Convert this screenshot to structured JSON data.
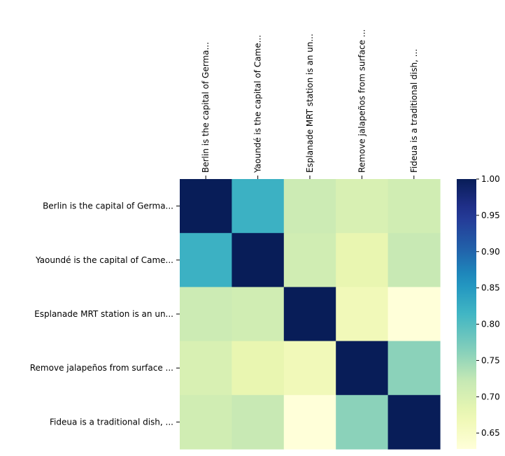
{
  "chart_data": {
    "type": "heatmap",
    "title": "",
    "xlabel": "",
    "ylabel": "",
    "row_labels": [
      "Berlin is the capital of Germa...",
      "Yaoundé is the capital of Came...",
      "Esplanade MRT station is an un...",
      "Remove jalapeños from surface ...",
      "Fideua is a traditional dish, ..."
    ],
    "col_labels": [
      "Berlin is the capital of Germa...",
      "Yaoundé is the capital of Came...",
      "Esplanade MRT station is an un...",
      "Remove jalapeños from surface ...",
      "Fideua is a traditional dish, ..."
    ],
    "values": [
      [
        1.0,
        0.82,
        0.715,
        0.7,
        0.71
      ],
      [
        0.82,
        1.0,
        0.71,
        0.68,
        0.72
      ],
      [
        0.715,
        0.71,
        1.0,
        0.665,
        0.628
      ],
      [
        0.7,
        0.68,
        0.665,
        1.0,
        0.76
      ],
      [
        0.71,
        0.72,
        0.628,
        0.76,
        1.0
      ]
    ],
    "colormap": "YlGnBu",
    "colorbar": {
      "min": 0.628,
      "max": 1.0,
      "ticks": [
        0.65,
        0.7,
        0.75,
        0.8,
        0.85,
        0.9,
        0.95,
        1.0
      ],
      "tick_labels": [
        "0.65",
        "0.70",
        "0.75",
        "0.80",
        "0.85",
        "0.90",
        "0.95",
        "1.00"
      ]
    },
    "grid": false,
    "legend": "right"
  }
}
